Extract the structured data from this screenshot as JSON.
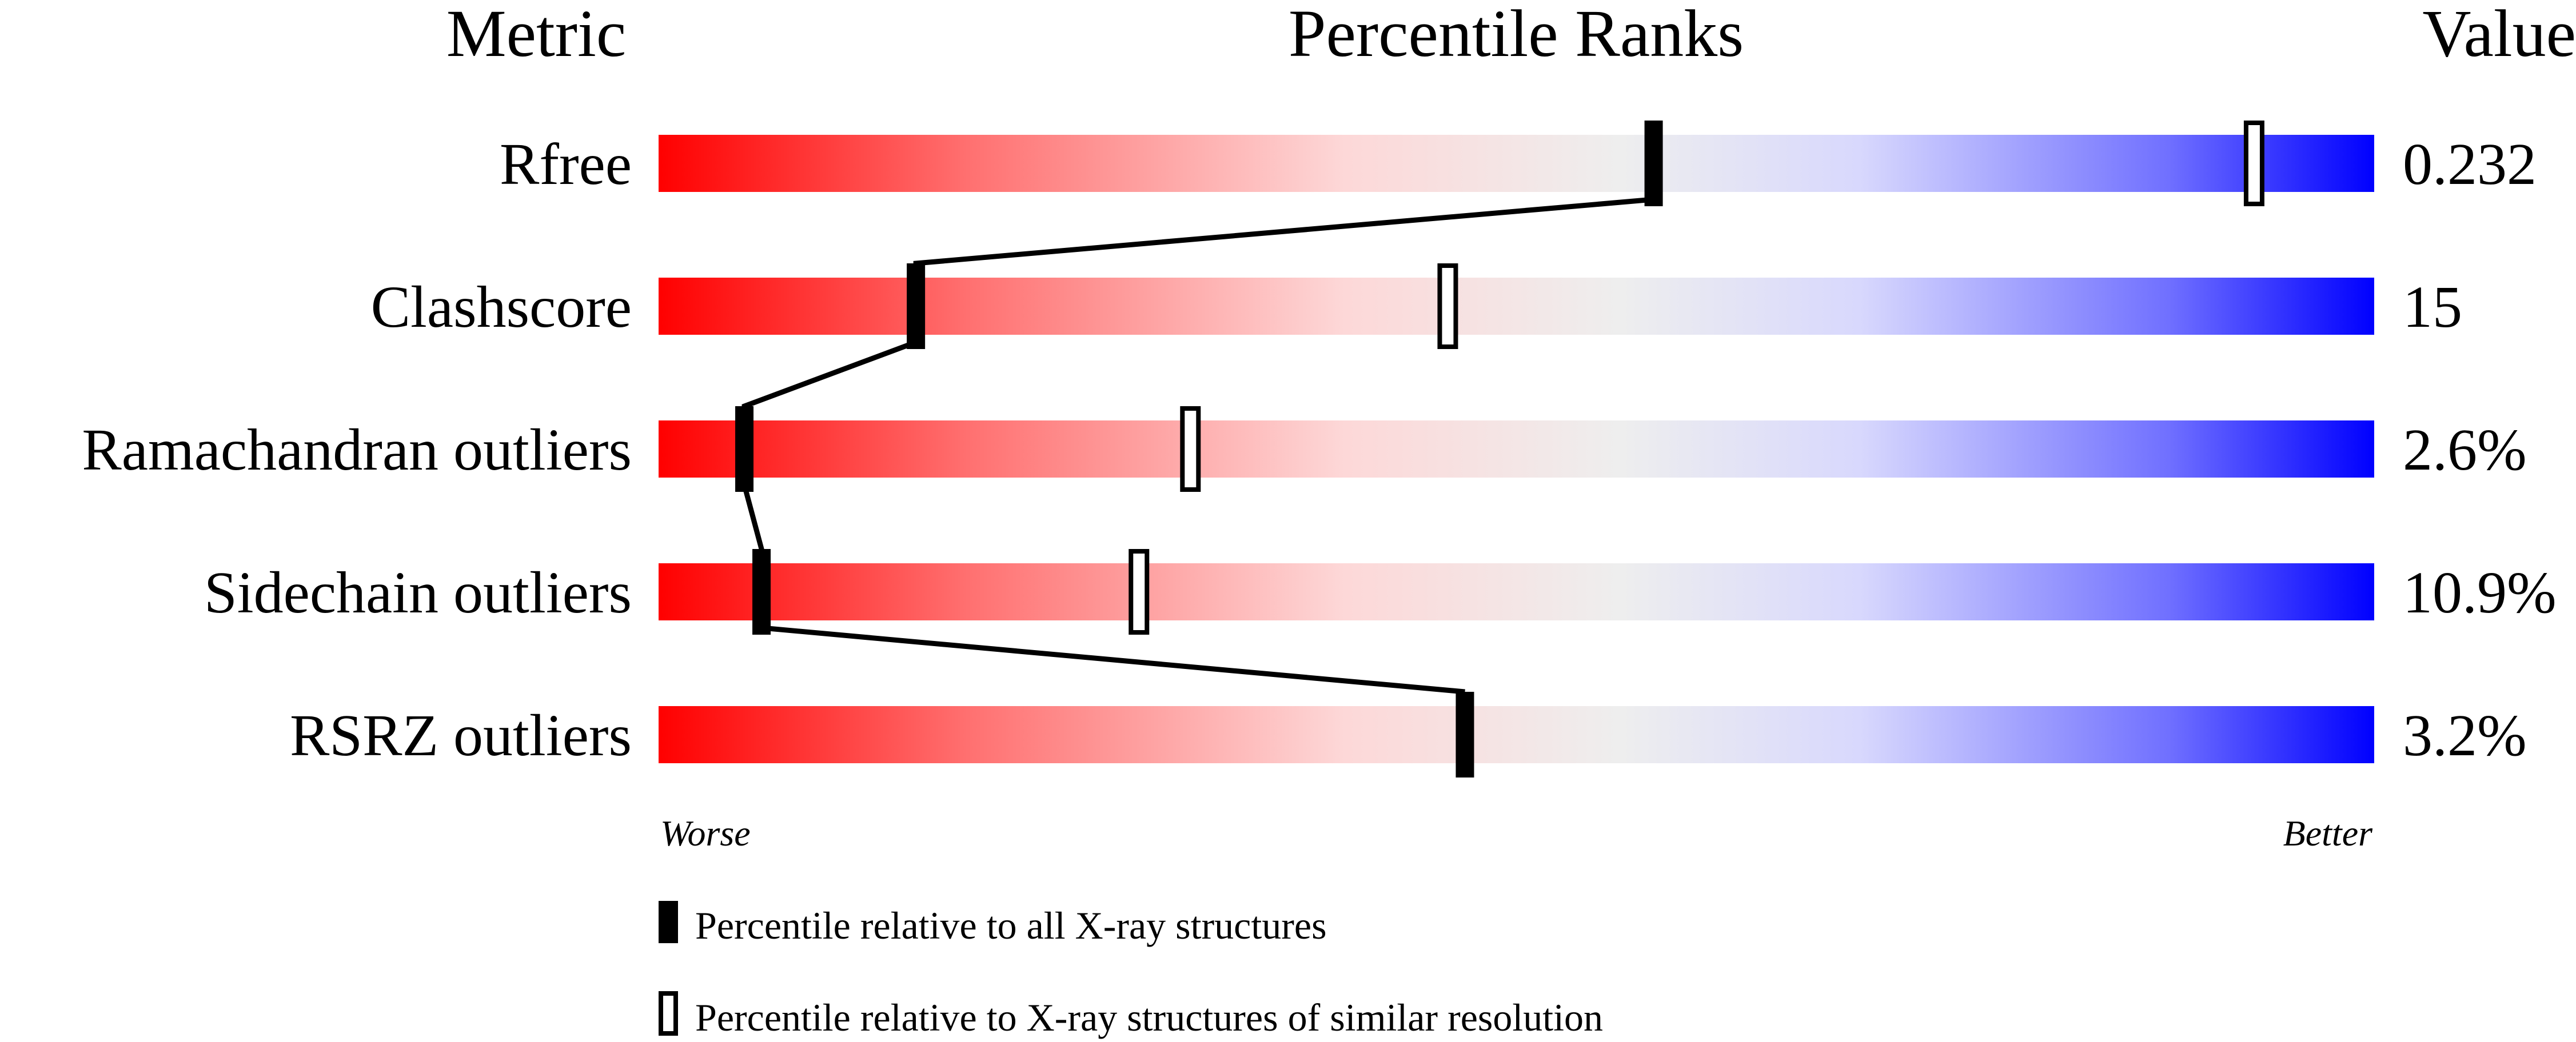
{
  "chart_data": {
    "type": "percentile-slider",
    "headers": {
      "metric": "Metric",
      "ranks": "Percentile Ranks",
      "value": "Value"
    },
    "xlim": [
      0,
      100
    ],
    "axis_labels": {
      "worse": "Worse",
      "better": "Better"
    },
    "colors": {
      "worse": "#ff0000",
      "neutral": "#eeeeee",
      "better": "#0000ff",
      "marker": "#000000"
    },
    "metrics": [
      {
        "name": "Rfree",
        "value": "0.232",
        "percentile_all": 58,
        "percentile_similar": 93
      },
      {
        "name": "Clashscore",
        "value": "15",
        "percentile_all": 15,
        "percentile_similar": 46
      },
      {
        "name": "Ramachandran outliers",
        "value": "2.6%",
        "percentile_all": 5,
        "percentile_similar": 31
      },
      {
        "name": "Sidechain outliers",
        "value": "10.9%",
        "percentile_all": 6,
        "percentile_similar": 28
      },
      {
        "name": "RSRZ outliers",
        "value": "3.2%",
        "percentile_all": 47,
        "percentile_similar": null
      }
    ],
    "legend": [
      {
        "marker": "filled",
        "label": "Percentile relative to all X-ray structures"
      },
      {
        "marker": "open",
        "label": "Percentile relative to X-ray structures of similar resolution"
      }
    ]
  }
}
